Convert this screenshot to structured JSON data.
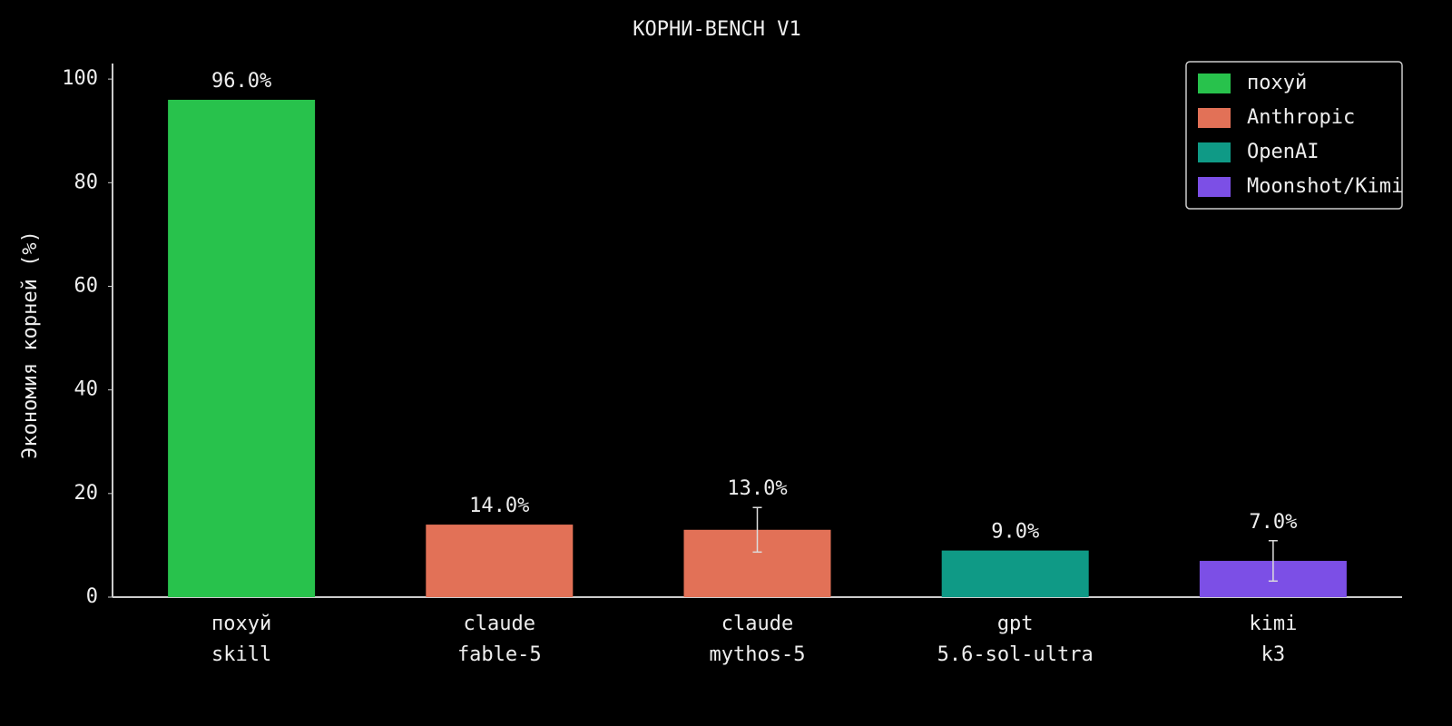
{
  "chart_data": {
    "type": "bar",
    "title": "КОРНИ-BENCH V1",
    "y_label": "Экономия корней (%)",
    "categories": [
      [
        "похуй",
        "skill"
      ],
      [
        "claude",
        "fable-5"
      ],
      [
        "claude",
        "mythos-5"
      ],
      [
        "gpt",
        "5.6-sol-ultra"
      ],
      [
        "kimi",
        "k3"
      ]
    ],
    "series": [
      {
        "name": "похуй",
        "color": "#28c24c",
        "values": [
          96,
          null,
          null,
          null,
          null
        ],
        "value_labels": [
          "96.0%",
          null,
          null,
          null,
          null
        ],
        "errors": [
          null,
          null,
          null,
          null,
          null
        ]
      },
      {
        "name": "Anthropic",
        "color": "#e27157",
        "values": [
          null,
          14,
          13,
          null,
          null
        ],
        "value_labels": [
          null,
          "14.0%",
          "13.0%",
          null,
          null
        ],
        "errors": [
          null,
          null,
          4.3,
          null,
          null
        ]
      },
      {
        "name": "OpenAI",
        "color": "#0f9a86",
        "values": [
          null,
          null,
          null,
          9,
          null
        ],
        "value_labels": [
          null,
          null,
          null,
          "9.0%",
          null
        ],
        "errors": [
          null,
          null,
          null,
          null,
          null
        ]
      },
      {
        "name": "Moonshot/Kimi",
        "color": "#7c4fe6",
        "values": [
          null,
          null,
          null,
          null,
          7
        ],
        "value_labels": [
          null,
          null,
          null,
          null,
          "7.0%"
        ],
        "errors": [
          null,
          null,
          null,
          null,
          3.9
        ]
      }
    ],
    "ylim": [
      0,
      103
    ],
    "yticks": [
      0,
      20,
      40,
      60,
      80,
      100
    ],
    "grid": false,
    "legend": "upper right"
  }
}
